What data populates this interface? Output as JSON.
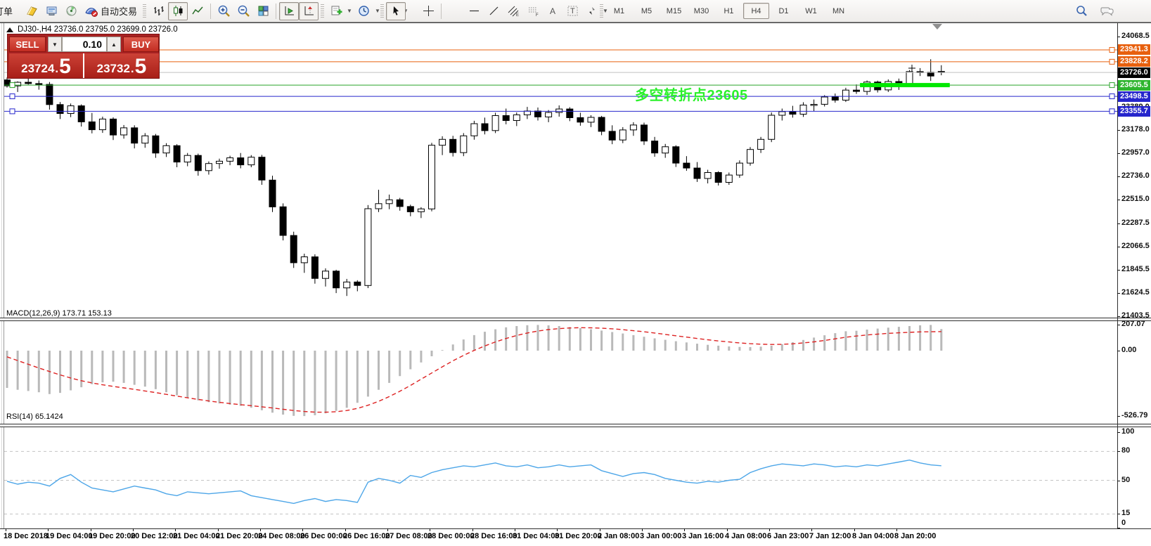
{
  "toolbar": {
    "order_button_label": "订单",
    "autotrading_label": "自动交易",
    "timeframes": [
      "M1",
      "M5",
      "M15",
      "M30",
      "H1",
      "H4",
      "D1",
      "W1",
      "MN"
    ],
    "active_timeframe": "H4"
  },
  "chart": {
    "title": "DJ30-,H4 23736.0 23795.0 23699.0 23726.0",
    "symbol": "DJ30-",
    "period": "H4",
    "annotation_text": "多空转折点23605",
    "colors": {
      "level_orange": "#e8600e",
      "level_green": "#2aa32a",
      "level_green_flag": "#2eb52e",
      "level_blue": "#2626cc",
      "current_price_line": "#c0c0c0",
      "current_price_flag": "#000000",
      "annotation_green": "#2bf12b",
      "trend_segment_green": "#00e800",
      "rsi_line": "#4da6e8",
      "macd_signal": "#dd2222",
      "macd_histogram": "#b9b9b9"
    }
  },
  "trade_panel": {
    "sell_label": "SELL",
    "buy_label": "BUY",
    "volume": "0.10",
    "sell_price_int": "23724",
    "sell_price_dec": "5",
    "buy_price_int": "23732",
    "buy_price_dec": "5"
  },
  "indicators": {
    "macd_label": "MACD(12,26,9) 173.71 153.13",
    "rsi_label": "RSI(14) 65.1424"
  },
  "chart_data": {
    "type": "candlestick",
    "symbol": "DJ30-",
    "timeframe": "H4",
    "ohlc_display": {
      "open": "23736.0",
      "high": "23795.0",
      "low": "23699.0",
      "close": "23726.0"
    },
    "price_axis_ticks": [
      24068.5,
      23389.0,
      23178.0,
      22957.0,
      22736.0,
      22515.0,
      22287.5,
      22066.5,
      21845.5,
      21624.5,
      21403.5
    ],
    "price_labels": [
      {
        "text": "23941.3",
        "price": 23941.3,
        "bg": "#e8600e",
        "line": "#e8600e",
        "handles": [
          "right"
        ]
      },
      {
        "text": "23828.2",
        "price": 23828.2,
        "bg": "#e8600e",
        "line": "#e8600e",
        "handles": [
          "right"
        ]
      },
      {
        "text": "23726.0",
        "price": 23726.0,
        "bg": "#000000",
        "line": "#c0c0c0",
        "handles": []
      },
      {
        "text": "23605.5",
        "price": 23605.5,
        "bg": "#2eb52e",
        "line": "#2aa32a",
        "handles": [
          "left",
          "right"
        ]
      },
      {
        "text": "23498.5",
        "price": 23498.5,
        "bg": "#2626cc",
        "line": "#2626cc",
        "handles": [
          "left",
          "right"
        ]
      },
      {
        "text": "23355.7",
        "price": 23355.7,
        "bg": "#2626cc",
        "line": "#2626cc",
        "handles": [
          "left",
          "right"
        ]
      }
    ],
    "trend_segment": {
      "price": 23605.5,
      "from_bar": 81,
      "to_bar": 88
    },
    "time_ticks": [
      "18 Dec 2018",
      "19 Dec 04:00",
      "19 Dec 20:00",
      "20 Dec 12:00",
      "21 Dec 04:00",
      "21 Dec 20:00",
      "24 Dec 08:00",
      "26 Dec 00:00",
      "26 Dec 16:00",
      "27 Dec 08:00",
      "28 Dec 00:00",
      "28 Dec 16:00",
      "31 Dec 04:00",
      "31 Dec 20:00",
      "2 Jan 08:00",
      "3 Jan 00:00",
      "3 Jan 16:00",
      "4 Jan 08:00",
      "6 Jan 23:00",
      "7 Jan 12:00",
      "8 Jan 04:00",
      "8 Jan 20:00"
    ],
    "candles": [
      [
        23655,
        23678,
        23582,
        23598
      ],
      [
        23598,
        23642,
        23540,
        23632
      ],
      [
        23632,
        23695,
        23610,
        23620
      ],
      [
        23620,
        23650,
        23562,
        23612
      ],
      [
        23612,
        23635,
        23372,
        23420
      ],
      [
        23420,
        23445,
        23282,
        23335
      ],
      [
        23335,
        23430,
        23300,
        23408
      ],
      [
        23408,
        23422,
        23210,
        23255
      ],
      [
        23255,
        23340,
        23145,
        23180
      ],
      [
        23180,
        23305,
        23150,
        23282
      ],
      [
        23282,
        23298,
        23082,
        23130
      ],
      [
        23130,
        23225,
        23095,
        23198
      ],
      [
        23198,
        23222,
        23002,
        23052
      ],
      [
        23052,
        23148,
        23008,
        23122
      ],
      [
        23122,
        23140,
        22912,
        22958
      ],
      [
        22958,
        23052,
        22920,
        23028
      ],
      [
        23028,
        23042,
        22822,
        22872
      ],
      [
        22872,
        22958,
        22832,
        22935
      ],
      [
        22935,
        22952,
        22742,
        22790
      ],
      [
        22790,
        22878,
        22752,
        22858
      ],
      [
        22858,
        22905,
        22808,
        22880
      ],
      [
        22880,
        22932,
        22842,
        22912
      ],
      [
        22912,
        22958,
        22812,
        22845
      ],
      [
        22845,
        22938,
        22822,
        22918
      ],
      [
        22918,
        22940,
        22655,
        22700
      ],
      [
        22700,
        22742,
        22395,
        22445
      ],
      [
        22445,
        22478,
        22125,
        22172
      ],
      [
        22172,
        22208,
        21862,
        21912
      ],
      [
        21912,
        21998,
        21815,
        21968
      ],
      [
        21968,
        21992,
        21712,
        21762
      ],
      [
        21762,
        21858,
        21685,
        21832
      ],
      [
        21832,
        21845,
        21622,
        21672
      ],
      [
        21672,
        21758,
        21595,
        21728
      ],
      [
        21728,
        21745,
        21640,
        21695
      ],
      [
        21695,
        22462,
        21670,
        22427
      ],
      [
        22427,
        22608,
        22395,
        22475
      ],
      [
        22475,
        22562,
        22422,
        22512
      ],
      [
        22512,
        22530,
        22408,
        22448
      ],
      [
        22448,
        22465,
        22355,
        22398
      ],
      [
        22398,
        22442,
        22338,
        22425
      ],
      [
        22425,
        23055,
        22402,
        23032
      ],
      [
        23032,
        23118,
        22938,
        23088
      ],
      [
        23088,
        23122,
        22925,
        22962
      ],
      [
        22962,
        23148,
        22928,
        23122
      ],
      [
        23122,
        23265,
        23085,
        23238
      ],
      [
        23238,
        23295,
        23135,
        23172
      ],
      [
        23172,
        23342,
        23148,
        23315
      ],
      [
        23315,
        23382,
        23232,
        23268
      ],
      [
        23268,
        23345,
        23215,
        23322
      ],
      [
        23322,
        23398,
        23282,
        23358
      ],
      [
        23358,
        23392,
        23268,
        23302
      ],
      [
        23302,
        23368,
        23252,
        23345
      ],
      [
        23345,
        23412,
        23305,
        23378
      ],
      [
        23378,
        23395,
        23262,
        23295
      ],
      [
        23295,
        23342,
        23218,
        23252
      ],
      [
        23252,
        23318,
        23205,
        23298
      ],
      [
        23298,
        23312,
        23128,
        23165
      ],
      [
        23165,
        23222,
        23042,
        23082
      ],
      [
        23082,
        23205,
        23052,
        23178
      ],
      [
        23178,
        23252,
        23122,
        23225
      ],
      [
        23225,
        23248,
        23035,
        23072
      ],
      [
        23072,
        23112,
        22922,
        22958
      ],
      [
        22958,
        23045,
        22912,
        23018
      ],
      [
        23018,
        23032,
        22825,
        22862
      ],
      [
        22862,
        22928,
        22788,
        22815
      ],
      [
        22815,
        22872,
        22682,
        22715
      ],
      [
        22715,
        22798,
        22668,
        22772
      ],
      [
        22772,
        22785,
        22648,
        22678
      ],
      [
        22678,
        22772,
        22655,
        22748
      ],
      [
        22748,
        22888,
        22722,
        22862
      ],
      [
        22862,
        23015,
        22838,
        22992
      ],
      [
        22992,
        23112,
        22958,
        23088
      ],
      [
        23088,
        23345,
        23062,
        23318
      ],
      [
        23318,
        23382,
        23268,
        23352
      ],
      [
        23352,
        23408,
        23295,
        23328
      ],
      [
        23328,
        23442,
        23302,
        23415
      ],
      [
        23415,
        23468,
        23355,
        23422
      ],
      [
        23422,
        23510,
        23402,
        23492
      ],
      [
        23492,
        23525,
        23438,
        23462
      ],
      [
        23462,
        23580,
        23445,
        23558
      ],
      [
        23558,
        23612,
        23522,
        23545
      ],
      [
        23545,
        23650,
        23512,
        23635
      ],
      [
        23635,
        23648,
        23535,
        23560
      ],
      [
        23560,
        23660,
        23540,
        23640
      ],
      [
        23640,
        23668,
        23560,
        23612
      ],
      [
        23612,
        23748,
        23590,
        23735
      ],
      [
        23735,
        23768,
        23692,
        23728
      ],
      [
        23728,
        23852,
        23645,
        23692
      ],
      [
        23736,
        23795,
        23699,
        23726
      ]
    ],
    "macd": {
      "axis_ticks": [
        "207.07",
        "0.00",
        "-526.79"
      ],
      "axis_values": [
        207.07,
        0,
        -526.79
      ],
      "histogram": [
        -300,
        -315,
        -325,
        -335,
        -350,
        -340,
        -320,
        -295,
        -270,
        -255,
        -250,
        -260,
        -275,
        -290,
        -310,
        -335,
        -360,
        -380,
        -400,
        -415,
        -425,
        -435,
        -445,
        -460,
        -480,
        -500,
        -515,
        -525,
        -527,
        -520,
        -505,
        -485,
        -460,
        -420,
        -370,
        -315,
        -260,
        -205,
        -150,
        -95,
        -45,
        5,
        50,
        90,
        125,
        152,
        172,
        188,
        198,
        205,
        207,
        204,
        198,
        190,
        181,
        172,
        162,
        150,
        138,
        125,
        112,
        99,
        87,
        76,
        66,
        56,
        47,
        40,
        34,
        30,
        29,
        32,
        40,
        52,
        68,
        86,
        105,
        124,
        141,
        156,
        160,
        170,
        178,
        185,
        192,
        198,
        204,
        207,
        174
      ],
      "signal": [
        -50,
        -80,
        -110,
        -140,
        -168,
        -195,
        -220,
        -242,
        -260,
        -275,
        -288,
        -300,
        -312,
        -325,
        -338,
        -352,
        -366,
        -380,
        -393,
        -405,
        -416,
        -426,
        -435,
        -443,
        -452,
        -462,
        -472,
        -482,
        -490,
        -495,
        -496,
        -492,
        -482,
        -465,
        -440,
        -408,
        -370,
        -327,
        -280,
        -230,
        -180,
        -130,
        -82,
        -38,
        2,
        38,
        70,
        98,
        122,
        142,
        158,
        170,
        178,
        183,
        185,
        184,
        181,
        176,
        169,
        161,
        152,
        142,
        131,
        120,
        109,
        98,
        88,
        78,
        70,
        62,
        56,
        52,
        50,
        51,
        55,
        62,
        71,
        82,
        95,
        108,
        118,
        126,
        133,
        139,
        144,
        148,
        151,
        152,
        153.13
      ]
    },
    "rsi": {
      "axis_ticks": [
        100,
        80,
        50,
        15,
        0
      ],
      "dashed_levels": [
        80,
        50,
        15
      ],
      "values": [
        49,
        46,
        48,
        47,
        44,
        52,
        56,
        48,
        42,
        40,
        38,
        41,
        44,
        42,
        40,
        36,
        34,
        38,
        37,
        36,
        37,
        38,
        39,
        34,
        32,
        30,
        28,
        26,
        29,
        31,
        28,
        30,
        29,
        27,
        48,
        52,
        50,
        47,
        55,
        53,
        58,
        61,
        63,
        65,
        64,
        66,
        68,
        65,
        64,
        66,
        63,
        64,
        66,
        64,
        65,
        66,
        60,
        57,
        54,
        57,
        58,
        56,
        52,
        50,
        48,
        47,
        49,
        48,
        50,
        51,
        58,
        62,
        65,
        67,
        66,
        65,
        67,
        66,
        64,
        65,
        64,
        66,
        65,
        67,
        69,
        71,
        68,
        66,
        65.14
      ]
    }
  }
}
